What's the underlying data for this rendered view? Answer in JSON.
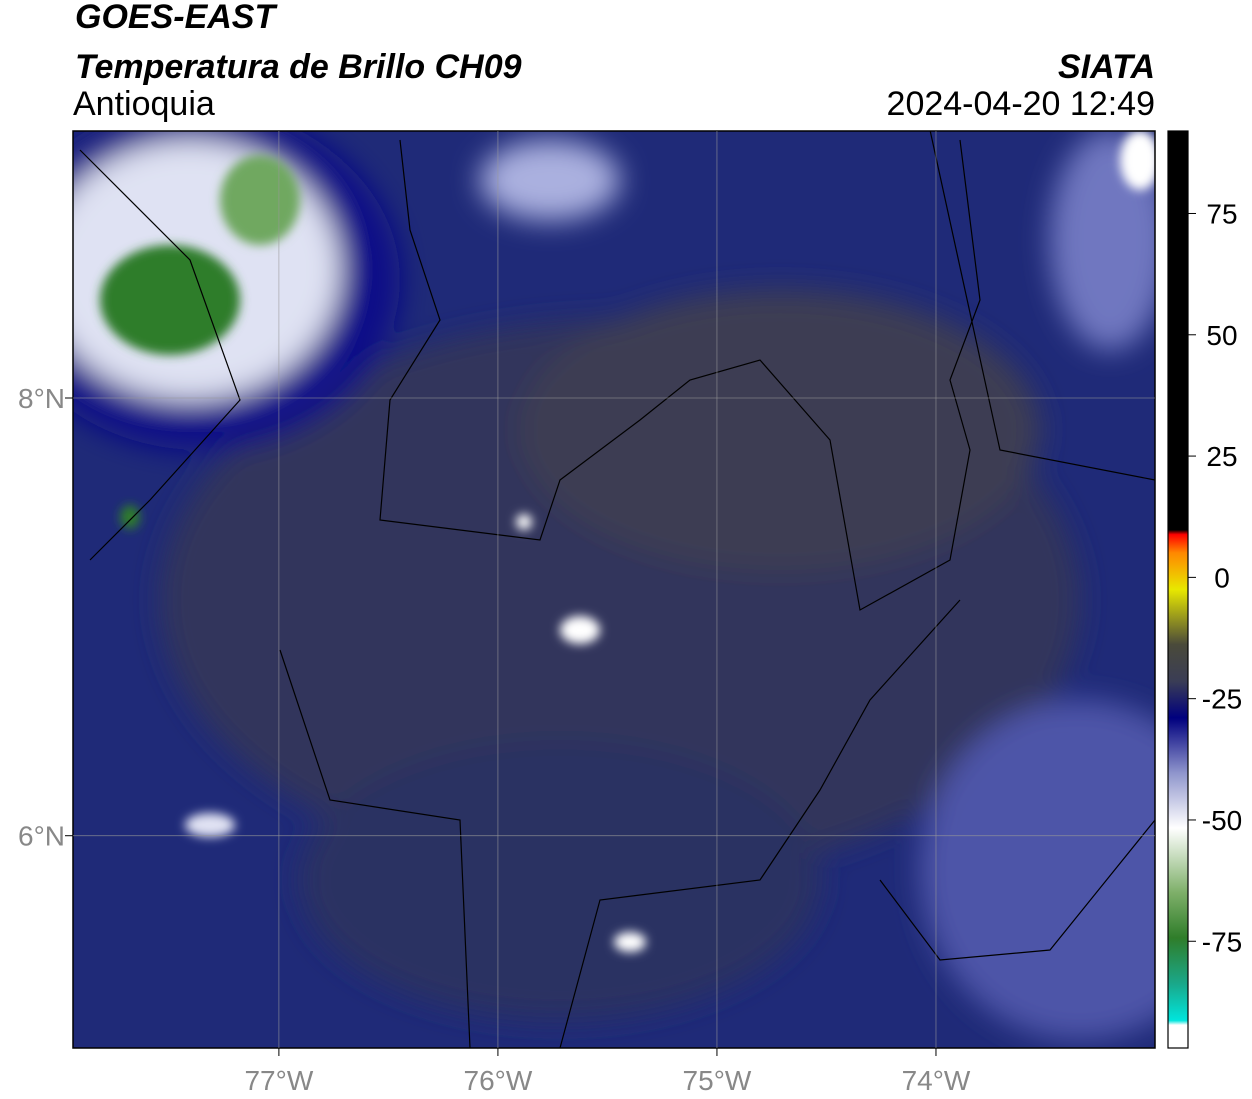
{
  "header": {
    "satellite": "GOES-EAST",
    "product": "Temperatura de Brillo CH09",
    "region": "Antioquia",
    "source": "SIATA",
    "datetime": "2024-04-20 12:49"
  },
  "map": {
    "xlim": [
      -77.94,
      -73.0
    ],
    "ylim": [
      5.03,
      9.22
    ],
    "xticks": [
      {
        "value": -77,
        "label": "77°W"
      },
      {
        "value": -76,
        "label": "76°W"
      },
      {
        "value": -75,
        "label": "75°W"
      },
      {
        "value": -74,
        "label": "74°W"
      }
    ],
    "yticks": [
      {
        "value": 8,
        "label": "8°N"
      },
      {
        "value": 6,
        "label": "6°N"
      }
    ],
    "grid": true
  },
  "colorbar": {
    "lim": [
      -97,
      92
    ],
    "ticks": [
      75,
      50,
      25,
      0,
      -25,
      -50,
      -75
    ]
  }
}
